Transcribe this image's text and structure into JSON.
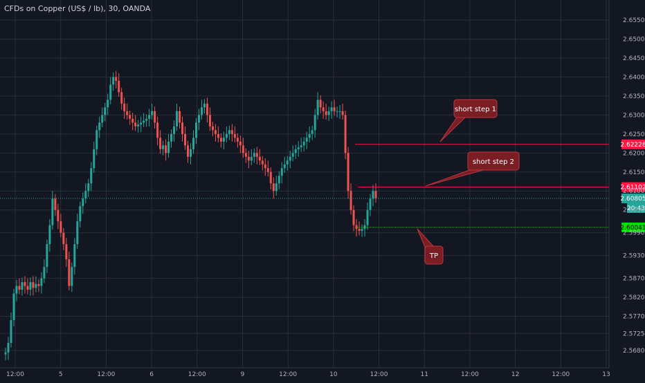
{
  "legend": {
    "symbol_text": "CFDs on Copper (US$ / lb), 30, OANDA"
  },
  "colors": {
    "background": "#131722",
    "grid": "#2a2e39",
    "axis_text": "#b2b5be",
    "up": "#26a69a",
    "down": "#ef5350",
    "callout_fill": "#7a1e24",
    "callout_border": "#c0353f",
    "last_price_badge": "#26a69a",
    "tp_badge": "#00e000",
    "level_badge": "#ff1744"
  },
  "price_axis": {
    "ticks": [
      "2.65500",
      "2.65000",
      "2.64500",
      "2.64000",
      "2.63500",
      "2.63000",
      "2.62500",
      "2.62000",
      "2.61500",
      "2.61000",
      "2.60500",
      "2.59900",
      "2.59300",
      "2.58700",
      "2.58200",
      "2.57700",
      "2.57250",
      "2.56800"
    ]
  },
  "time_axis": {
    "ticks": [
      "12:00",
      "5",
      "12:00",
      "6",
      "12:00",
      "9",
      "12:00",
      "10",
      "12:00",
      "11",
      "12:00",
      "12",
      "12:00",
      "13"
    ]
  },
  "levels": [
    {
      "name": "short-step-1-level",
      "price": "2.62228",
      "color": "#ff1744"
    },
    {
      "name": "short-step-2-level",
      "price": "2.61102",
      "color": "#ff1744"
    },
    {
      "name": "tp-level",
      "price": "2.60041",
      "color": "#00e000"
    }
  ],
  "last_price": {
    "price": "2.60805",
    "countdown": "20:43"
  },
  "annotations": [
    {
      "name": "callout-short-step-1",
      "text": "short step 1"
    },
    {
      "name": "callout-short-step-2",
      "text": "short step 2"
    },
    {
      "name": "callout-tp",
      "text": "TP"
    }
  ],
  "chart_data": {
    "type": "candlestick",
    "title": "CFDs on Copper (US$ / lb), 30, OANDA",
    "ylim": [
      2.566,
      2.657
    ],
    "grid": true,
    "series": [
      {
        "closes": [
          2.5675,
          2.57,
          2.576,
          2.583,
          2.585,
          2.584,
          2.586,
          2.585,
          2.584,
          2.586,
          2.5845,
          2.5855,
          2.585,
          2.587,
          2.59,
          2.596,
          2.601,
          2.608,
          2.605,
          2.602,
          2.599,
          2.596,
          2.592,
          2.585,
          2.59,
          2.596,
          2.602,
          2.606,
          2.608,
          2.61,
          2.612,
          2.616,
          2.621,
          2.626,
          2.628,
          2.63,
          2.632,
          2.634,
          2.638,
          2.64,
          2.639,
          2.636,
          2.633,
          2.631,
          2.63,
          2.629,
          2.628,
          2.627,
          2.6275,
          2.628,
          2.6285,
          2.629,
          2.63,
          2.631,
          2.628,
          2.624,
          2.621,
          2.622,
          2.62,
          2.623,
          2.625,
          2.627,
          2.631,
          2.628,
          2.625,
          2.622,
          2.619,
          2.621,
          2.624,
          2.628,
          2.63,
          2.632,
          2.633,
          2.63,
          2.627,
          2.626,
          2.625,
          2.624,
          2.623,
          2.624,
          2.625,
          2.626,
          2.625,
          2.624,
          2.623,
          2.622,
          2.62,
          2.619,
          2.618,
          2.619,
          2.62,
          2.619,
          2.618,
          2.617,
          2.616,
          2.615,
          2.612,
          2.61,
          2.612,
          2.614,
          2.616,
          2.617,
          2.618,
          2.619,
          2.62,
          2.621,
          2.6215,
          2.622,
          2.623,
          2.624,
          2.625,
          2.626,
          2.63,
          2.634,
          2.632,
          2.631,
          2.63,
          2.631,
          2.632,
          2.631,
          2.631,
          2.631,
          2.63,
          2.62,
          2.61,
          2.605,
          2.601,
          2.6,
          2.5995,
          2.6,
          2.601,
          2.605,
          2.608,
          2.61,
          2.6081
        ]
      }
    ]
  }
}
